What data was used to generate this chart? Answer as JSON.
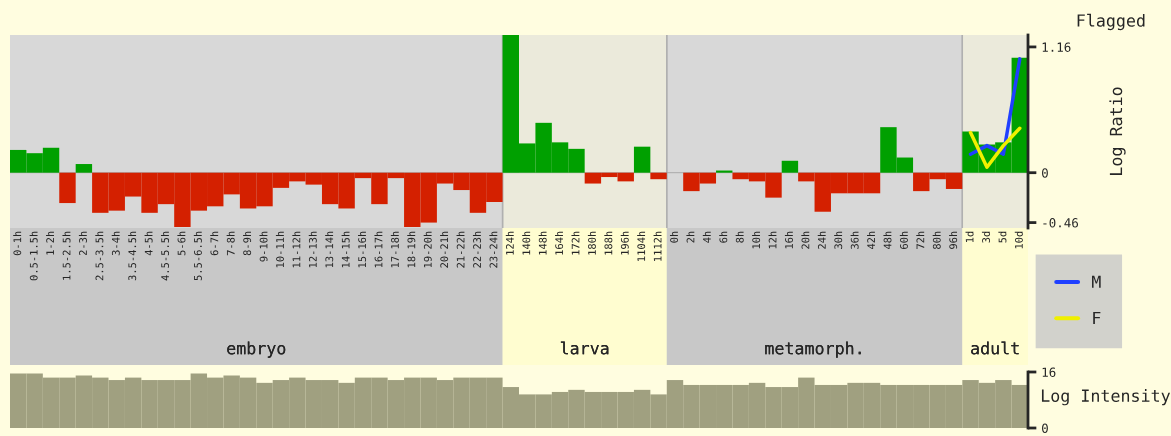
{
  "chart_data": [
    {
      "type": "bar",
      "ylabel": "Log Ratio",
      "categories": [
        "0-1h",
        "0.5-1.5h",
        "1-2h",
        "1.5-2.5h",
        "2-3h",
        "2.5-3.5h",
        "3-4h",
        "3.5-4.5h",
        "4-5h",
        "4.5-5.5h",
        "5-6h",
        "5.5-6.5h",
        "6-7h",
        "7-8h",
        "8-9h",
        "9-10h",
        "10-11h",
        "11-12h",
        "12-13h",
        "13-14h",
        "14-15h",
        "15-16h",
        "16-17h",
        "17-18h",
        "18-19h",
        "19-20h",
        "20-21h",
        "21-22h",
        "22-23h",
        "23-24h",
        "124h",
        "140h",
        "148h",
        "164h",
        "172h",
        "180h",
        "188h",
        "196h",
        "1104h",
        "1112h",
        "0h",
        "2h",
        "4h",
        "6h",
        "8h",
        "10h",
        "12h",
        "16h",
        "20h",
        "24h",
        "30h",
        "36h",
        "42h",
        "48h",
        "60h",
        "72h",
        "80h",
        "96h",
        "1d",
        "3d",
        "5d",
        "10d"
      ],
      "values": [
        0.21,
        0.18,
        0.23,
        -0.28,
        0.08,
        -0.37,
        -0.35,
        -0.22,
        -0.37,
        -0.29,
        -0.5,
        -0.35,
        -0.31,
        -0.2,
        -0.33,
        -0.31,
        -0.14,
        -0.08,
        -0.11,
        -0.29,
        -0.33,
        -0.05,
        -0.29,
        -0.05,
        -0.5,
        -0.46,
        -0.1,
        -0.16,
        -0.37,
        -0.27,
        1.27,
        0.27,
        0.46,
        0.28,
        0.22,
        -0.1,
        -0.04,
        -0.08,
        0.24,
        -0.06,
        0,
        -0.17,
        -0.1,
        0.02,
        -0.06,
        -0.08,
        -0.23,
        0.11,
        -0.08,
        -0.36,
        -0.19,
        -0.19,
        -0.19,
        0.42,
        0.14,
        -0.17,
        -0.06,
        -0.15,
        0.38,
        0.26,
        0.28,
        1.06
      ],
      "colors": [
        "#00a000",
        "#00a000",
        "#00a000",
        "#d42000",
        "#00a000",
        "#d42000",
        "#d42000",
        "#d42000",
        "#d42000",
        "#d42000",
        "#d42000",
        "#d42000",
        "#d42000",
        "#d42000",
        "#d42000",
        "#d42000",
        "#d42000",
        "#d42000",
        "#d42000",
        "#d42000",
        "#d42000",
        "#d42000",
        "#d42000",
        "#d42000",
        "#d42000",
        "#d42000",
        "#d42000",
        "#d42000",
        "#d42000",
        "#d42000",
        "#00a000",
        "#00a000",
        "#00a000",
        "#00a000",
        "#00a000",
        "#d42000",
        "#d42000",
        "#d42000",
        "#00a000",
        "#d42000",
        "#000000",
        "#d42000",
        "#d42000",
        "#00a000",
        "#d42000",
        "#d42000",
        "#d42000",
        "#00a000",
        "#d42000",
        "#d42000",
        "#d42000",
        "#d42000",
        "#d42000",
        "#00a000",
        "#00a000",
        "#d42000",
        "#d42000",
        "#d42000",
        "#00a000",
        "#00a000",
        "#00a000",
        "#00a000"
      ],
      "series": [
        {
          "type": "line",
          "name": "M",
          "color": "#2040ff",
          "values": [
            null,
            null,
            null,
            null,
            null,
            null,
            null,
            null,
            null,
            null,
            null,
            null,
            null,
            null,
            null,
            null,
            null,
            null,
            null,
            null,
            null,
            null,
            null,
            null,
            null,
            null,
            null,
            null,
            null,
            null,
            null,
            null,
            null,
            null,
            null,
            null,
            null,
            null,
            null,
            null,
            null,
            null,
            null,
            null,
            null,
            null,
            null,
            null,
            null,
            null,
            null,
            null,
            null,
            null,
            null,
            null,
            null,
            null,
            0.17,
            0.25,
            0.17,
            1.05
          ]
        },
        {
          "type": "line",
          "name": "F",
          "color": "#f0f000",
          "values": [
            null,
            null,
            null,
            null,
            null,
            null,
            null,
            null,
            null,
            null,
            null,
            null,
            null,
            null,
            null,
            null,
            null,
            null,
            null,
            null,
            null,
            null,
            null,
            null,
            null,
            null,
            null,
            null,
            null,
            null,
            null,
            null,
            null,
            null,
            null,
            null,
            null,
            null,
            null,
            null,
            null,
            null,
            null,
            null,
            null,
            null,
            null,
            null,
            null,
            null,
            null,
            null,
            null,
            null,
            null,
            null,
            null,
            null,
            0.37,
            0.05,
            0.25,
            0.41
          ]
        }
      ],
      "ylim": [
        -0.51,
        1.27
      ],
      "yticks": [
        -0.46,
        0,
        1.16
      ],
      "bands": [
        {
          "axis": "x",
          "from": "0-1h",
          "to": "23-24h",
          "label": "embryo",
          "color": "#c8c8c8"
        },
        {
          "axis": "x",
          "from": "124h",
          "to": "1112h",
          "label": "larva",
          "color": "#fffdd0"
        },
        {
          "axis": "x",
          "from": "0h",
          "to": "96h",
          "label": "metamorph.",
          "color": "#c8c8c8"
        },
        {
          "axis": "x",
          "from": "1d",
          "to": "10d",
          "label": "adult",
          "color": "#fffdd0"
        }
      ],
      "legend": "right",
      "annotations": [
        "Flagged"
      ]
    },
    {
      "type": "bar",
      "ylabel": "Log Intensity",
      "categories": [
        null,
        null,
        null,
        null,
        null,
        null,
        null,
        null,
        null,
        null,
        null,
        null,
        null,
        null,
        null,
        null,
        null,
        null,
        null,
        null,
        null,
        null,
        null,
        null,
        null,
        null,
        null,
        null,
        null,
        null,
        null,
        null,
        null,
        null,
        null,
        null,
        null,
        null,
        null,
        null,
        null,
        null,
        null,
        null,
        null,
        null,
        null,
        null,
        null,
        null,
        null,
        null,
        null,
        null,
        null,
        null,
        null,
        null,
        null,
        null,
        null,
        null
      ],
      "values": [
        15.6,
        15.6,
        14.4,
        14.4,
        15.0,
        14.4,
        13.7,
        14.4,
        13.7,
        13.7,
        13.7,
        15.6,
        14.4,
        15.0,
        14.4,
        12.9,
        13.7,
        14.4,
        13.7,
        13.7,
        12.9,
        14.4,
        14.4,
        13.7,
        14.4,
        14.4,
        13.7,
        14.4,
        14.4,
        14.4,
        11.7,
        9.6,
        9.6,
        10.3,
        10.9,
        10.3,
        10.3,
        10.3,
        10.9,
        9.6,
        13.7,
        12.3,
        12.3,
        12.3,
        12.3,
        12.9,
        11.7,
        11.7,
        14.4,
        12.3,
        12.3,
        12.9,
        12.9,
        12.3,
        12.3,
        12.3,
        12.3,
        12.3,
        13.7,
        12.9,
        13.7,
        12.3
      ],
      "color": "#a0a080",
      "ylim": [
        0,
        16
      ],
      "yticks": [
        0,
        16
      ]
    }
  ]
}
